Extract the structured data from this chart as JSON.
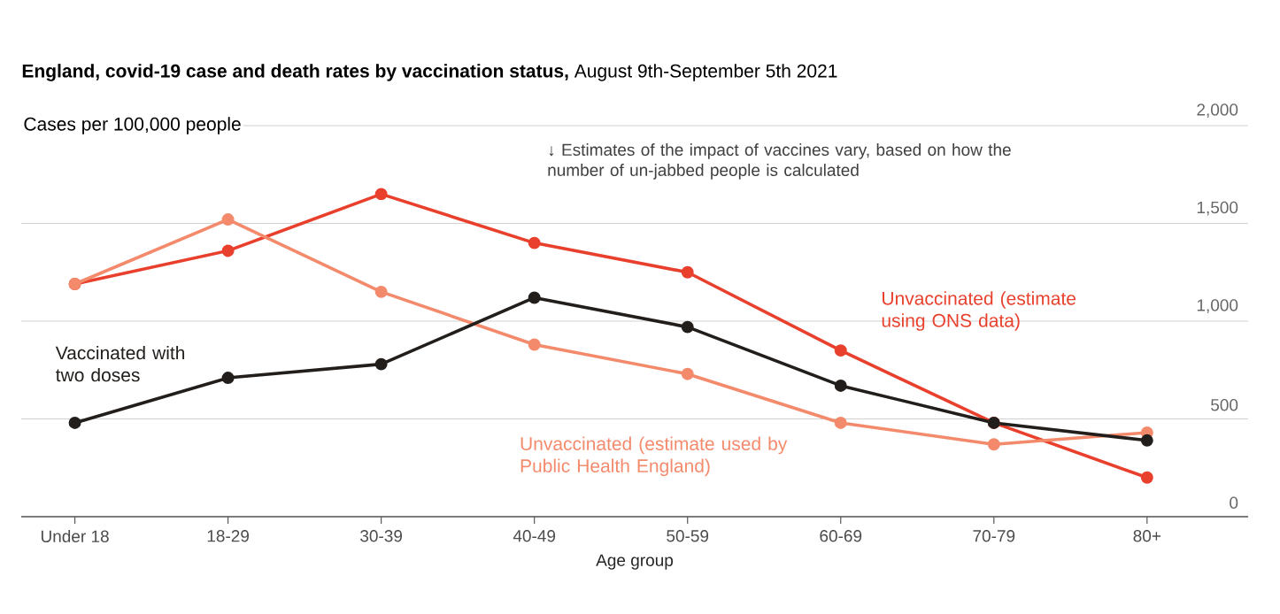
{
  "chart_data": {
    "type": "line",
    "title": "**England, covid-19 case and death rates by vaccination status,** August 9th-September 5th 2021",
    "ylabel": "Cases per 100,000 people",
    "xlabel": "Age group",
    "categories": [
      "Under 18",
      "18-29",
      "30-39",
      "40-49",
      "50-59",
      "60-69",
      "70-79",
      "80+"
    ],
    "series": [
      {
        "name": "Unvaccinated (estimate using ONS data)",
        "color": "#e8402c",
        "values": [
          1190,
          1360,
          1650,
          1400,
          1250,
          850,
          480,
          200
        ]
      },
      {
        "name": "Unvaccinated (estimate used by Public Health England)",
        "color": "#f48a6c",
        "values": [
          1190,
          1520,
          1150,
          880,
          730,
          480,
          370,
          430
        ]
      },
      {
        "name": "Vaccinated with two doses",
        "color": "#221e1b",
        "values": [
          480,
          710,
          780,
          1120,
          970,
          670,
          480,
          390
        ]
      }
    ],
    "ylim": [
      0,
      2000
    ],
    "yticks": [
      0,
      500,
      {
        "value": 1000,
        "label": "1,000"
      },
      {
        "value": 1500,
        "label": "1,500"
      },
      {
        "value": 2000,
        "label": "2,000"
      }
    ],
    "grid": "y",
    "legend": false,
    "marker": "circle",
    "line_style": "solid",
    "annotations": [
      "↓ Estimates of the impact of vaccines vary, based on how the number of un-jabbed people is calculated"
    ]
  }
}
